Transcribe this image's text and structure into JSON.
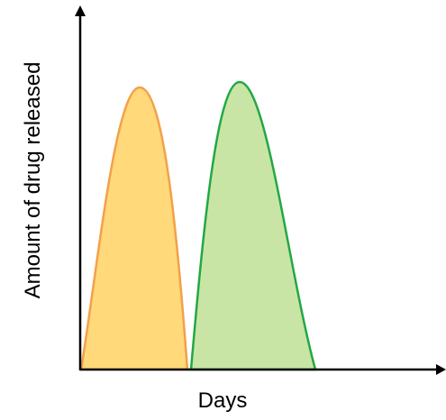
{
  "x_axis": {
    "label": "Days"
  },
  "y_axis": {
    "label": "Amount of drug released"
  }
}
